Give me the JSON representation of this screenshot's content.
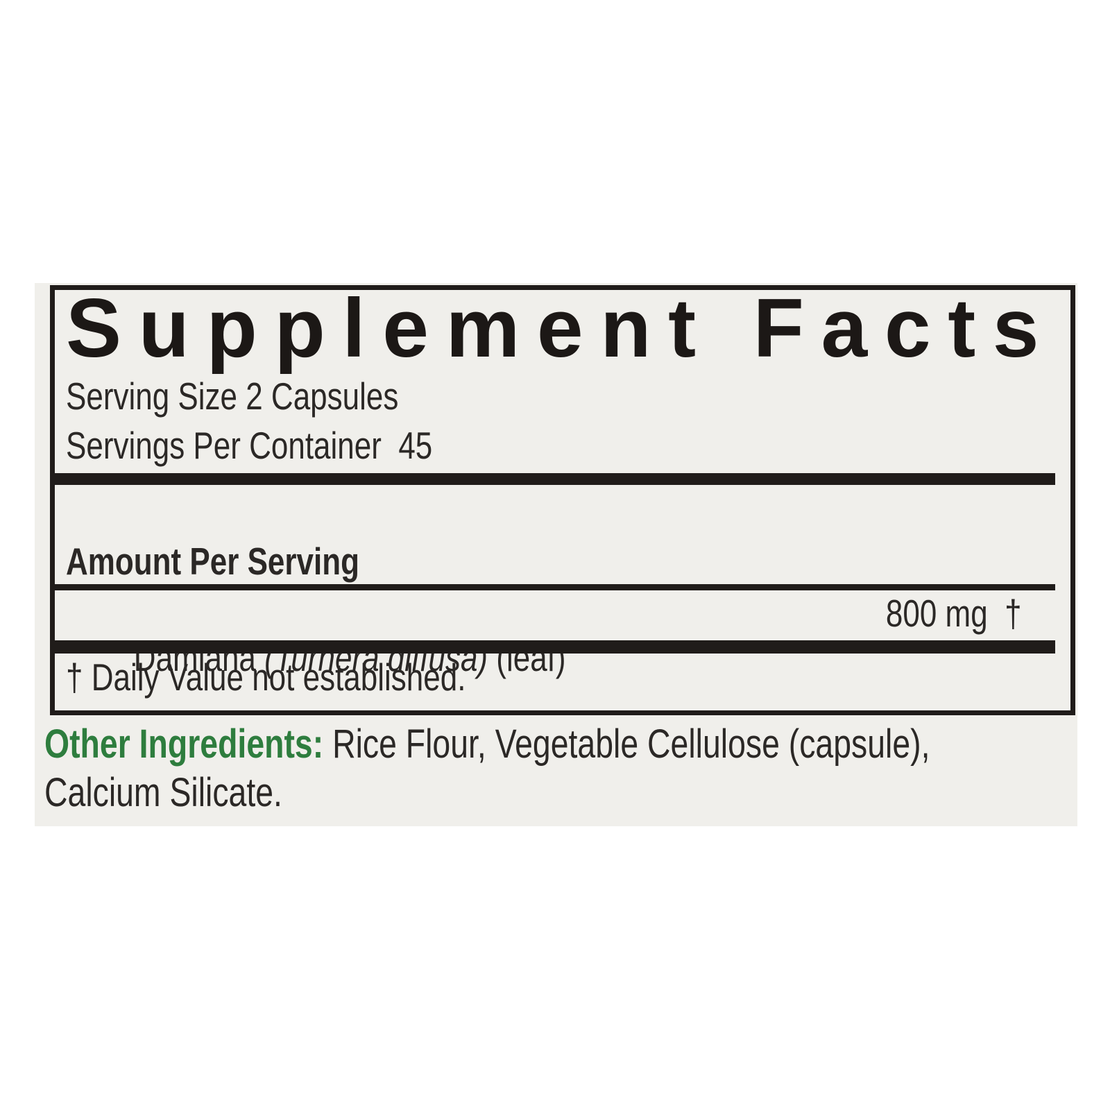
{
  "label": {
    "title": "Supplement Facts",
    "serving_size": "Serving Size 2 Capsules",
    "servings_per_container": "Servings Per Container  45",
    "amount_per_serving_heading": "Amount Per Serving",
    "ingredient": {
      "name_prefix": "Damiana ",
      "name_scientific": "(Turnera diffusa)",
      "name_suffix": " (leaf)",
      "amount": "800 mg  †"
    },
    "footnote": "† Daily Value not established.",
    "other_ingredients": {
      "heading": "Other Ingredients:",
      "line1_rest": " Rice Flour, Vegetable Cellulose (capsule),",
      "line2": "Calcium Silicate."
    },
    "colors": {
      "accent_green": "#2e7d3e",
      "label_background": "#f0efeb",
      "rule_black": "#201c1a"
    }
  }
}
